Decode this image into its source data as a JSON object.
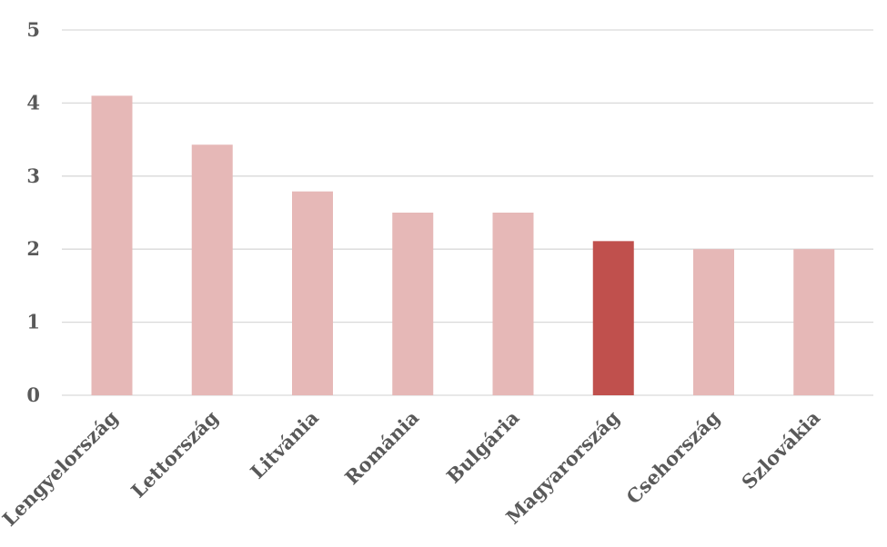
{
  "chart_data": {
    "type": "bar",
    "categories": [
      "Lengyelország",
      "Lettország",
      "Litvánia",
      "Románia",
      "Bulgária",
      "Magyarország",
      "Csehország",
      "Szlovákia"
    ],
    "values": [
      4.1,
      3.43,
      2.79,
      2.5,
      2.5,
      2.11,
      2.0,
      2.0
    ],
    "highlight_index": 5,
    "title": "",
    "xlabel": "",
    "ylabel": "",
    "ylim": [
      0,
      5
    ],
    "yticks": [
      "0",
      "1",
      "2",
      "3",
      "4",
      "5"
    ],
    "grid": true,
    "legend": "none",
    "colors": {
      "bar": "#e6b8b7",
      "highlight": "#c0504d",
      "grid": "#d9d9d9",
      "text": "#595959"
    }
  }
}
